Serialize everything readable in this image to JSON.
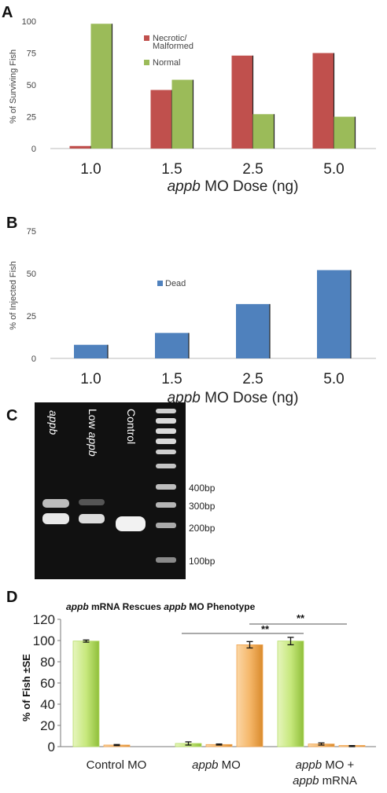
{
  "colors": {
    "necrotic": "#c0504d",
    "normal": "#9bbb59",
    "dead": "#4f81bd",
    "d_green": "#b7dd68",
    "d_orange": "#f0a450"
  },
  "panels": {
    "a": "A",
    "b": "B",
    "c": "C",
    "d": "D"
  },
  "chart_data": [
    {
      "type": "bar",
      "panel": "A",
      "categories": [
        "1.0",
        "1.5",
        "2.5",
        "5.0"
      ],
      "series": [
        {
          "name": "Necrotic/ Malformed",
          "values": [
            2,
            46,
            73,
            75
          ]
        },
        {
          "name": "Normal",
          "values": [
            98,
            54,
            27,
            25
          ]
        }
      ],
      "ytick_labels": [
        "0",
        "25",
        "50",
        "75",
        "100"
      ],
      "ylim": [
        0,
        100
      ],
      "ylabel": "% of Surviving Fish",
      "xlabel_italic": "appb",
      "xlabel_rest": " MO Dose (ng)",
      "legend_position": "top-right",
      "grid": false
    },
    {
      "type": "bar",
      "panel": "B",
      "categories": [
        "1.0",
        "1.5",
        "2.5",
        "5.0"
      ],
      "series": [
        {
          "name": "Dead",
          "values": [
            8,
            15,
            32,
            52
          ]
        }
      ],
      "ytick_labels": [
        "0",
        "25",
        "50",
        "75"
      ],
      "ylim": [
        0,
        75
      ],
      "ylabel": "% of Injected Fish",
      "xlabel_italic": "appb",
      "xlabel_rest": " MO Dose (ng)",
      "legend_position": "middle-left",
      "grid": false
    },
    {
      "type": "bar",
      "panel": "D",
      "title_parts": [
        "appb",
        " mRNA Rescues ",
        "appb",
        " MO Phenotype"
      ],
      "categories": [
        "Control MO",
        "appb MO",
        "appb MO + appb mRNA"
      ],
      "category_lines": [
        [
          "Control MO"
        ],
        [
          "appb MO"
        ],
        [
          "appb MO +",
          "appb mRNA"
        ]
      ],
      "series": [
        {
          "values": [
            99.5,
            3,
            99.5
          ],
          "errors": [
            1,
            1.5,
            3.5
          ]
        },
        {
          "values": [
            1.5,
            2,
            2.5
          ],
          "errors": [
            0.5,
            0.5,
            1
          ]
        },
        {
          "values": [
            0,
            96,
            0.5
          ],
          "errors": [
            0,
            3,
            0.5
          ]
        }
      ],
      "ytick_labels": [
        "0",
        "20",
        "40",
        "60",
        "80",
        "100",
        "120"
      ],
      "ylim": [
        0,
        120
      ],
      "ylabel": "% of Fish ±SE",
      "significance": [
        "**",
        "**"
      ],
      "grid": false
    }
  ],
  "gel": {
    "lane_labels": [
      "appb",
      "Low appb",
      "Control"
    ],
    "ladder_labels": [
      "400bp",
      "300bp",
      "200bp",
      "100bp"
    ]
  }
}
